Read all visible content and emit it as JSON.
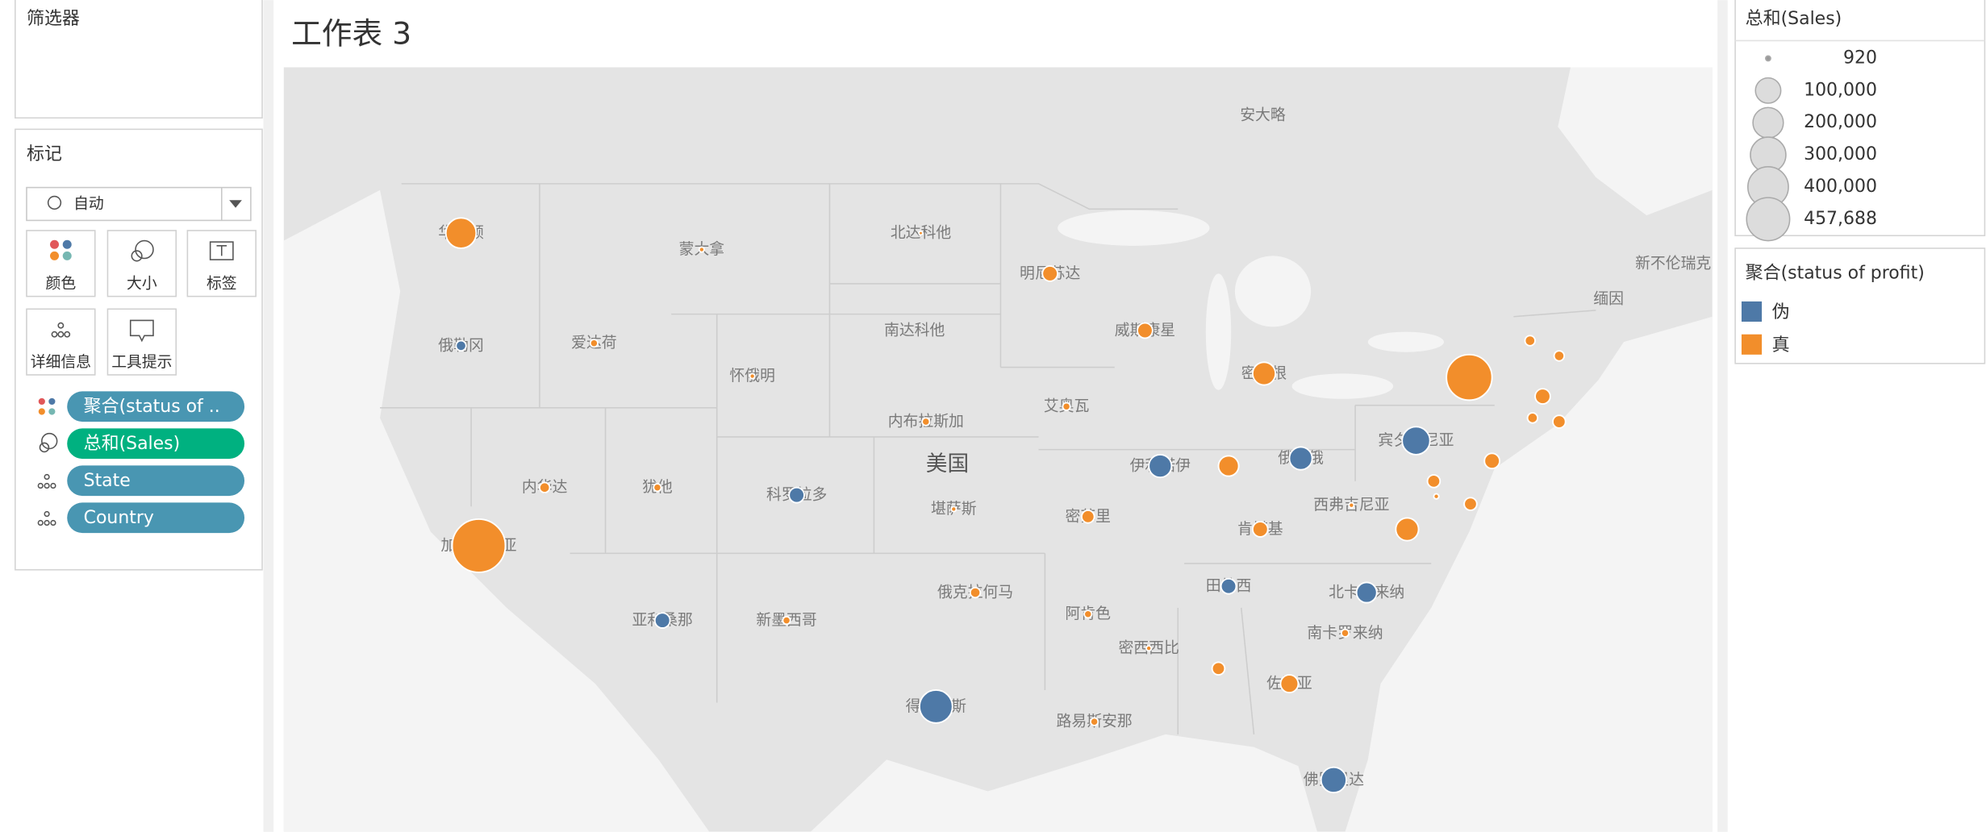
{
  "filters_panel": {
    "title": "筛选器"
  },
  "marks_panel": {
    "title": "标记",
    "mark_type": "自动",
    "buttons": [
      "颜色",
      "大小",
      "标签",
      "详细信息",
      "工具提示"
    ],
    "fields": [
      "聚合(status of ..",
      "总和(Sales)",
      "State",
      "Country"
    ]
  },
  "worksheet": {
    "title": "工作表 3",
    "map_labels": [
      "华盛顿",
      "俄勒冈",
      "爱达荷",
      "蒙大拿",
      "北达科他",
      "明尼苏达",
      "南达科他",
      "威斯康星",
      "怀俄明",
      "密歇根",
      "安大略",
      "内布拉斯加",
      "艾奥瓦",
      "美国",
      "内华达",
      "犹他",
      "科罗拉多",
      "堪萨斯",
      "伊利诺伊",
      "俄亥俄",
      "宾夕法尼亚",
      "加利福尼亚",
      "密苏里",
      "肯塔基",
      "西弗吉尼亚",
      "田纳西",
      "北卡罗来纳",
      "亚利桑那",
      "新墨西哥",
      "俄克拉何马",
      "阿肯色",
      "密西西比",
      "南卡罗来纳",
      "佐治亚",
      "得克萨斯",
      "路易斯安那",
      "佛罗里达",
      "缅因",
      "新不伦瑞克"
    ]
  },
  "size_legend": {
    "title": "总和(Sales)",
    "items": [
      "920",
      "100,000",
      "200,000",
      "300,000",
      "400,000",
      "457,688"
    ]
  },
  "color_legend": {
    "title": "聚合(status of profit)",
    "items": [
      {
        "label": "伪",
        "color": "#4e79a7"
      },
      {
        "label": "真",
        "color": "#f28e2b"
      }
    ]
  }
}
